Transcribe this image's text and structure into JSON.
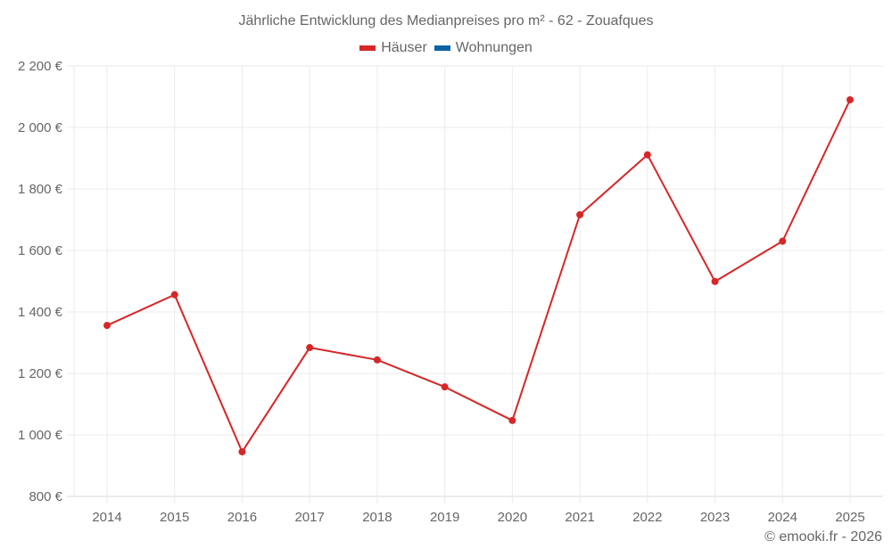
{
  "title": "Jährliche Entwicklung des Medianpreises pro m² - 62 - Zouafques",
  "legend": [
    {
      "label": "Häuser",
      "color": "#d62728"
    },
    {
      "label": "Wohnungen",
      "color": "#0a64a4"
    }
  ],
  "footer": "© emooki.fr - 2026",
  "colors": {
    "grid": "#ebebeb",
    "axis": "#d9d9d9",
    "text": "#666666",
    "series_houses": "#d62728"
  },
  "chart_data": {
    "type": "line",
    "title": "Jährliche Entwicklung des Medianpreises pro m² - 62 - Zouafques",
    "xlabel": "",
    "ylabel": "",
    "categories": [
      "2014",
      "2015",
      "2016",
      "2017",
      "2018",
      "2019",
      "2020",
      "2021",
      "2022",
      "2023",
      "2024",
      "2025"
    ],
    "series": [
      {
        "name": "Häuser",
        "color": "#d62728",
        "values": [
          1356,
          1456,
          945,
          1284,
          1244,
          1156,
          1047,
          1716,
          1911,
          1499,
          1630,
          2090
        ]
      },
      {
        "name": "Wohnungen",
        "color": "#0a64a4",
        "values": []
      }
    ],
    "ylim": [
      800,
      2200
    ],
    "yticks": [
      800,
      1000,
      1200,
      1400,
      1600,
      1800,
      2000,
      2200
    ],
    "ytick_labels": [
      "800 €",
      "1 000 €",
      "1 200 €",
      "1 400 €",
      "1 600 €",
      "1 800 €",
      "2 000 €",
      "2 200 €"
    ],
    "grid": true,
    "legend_position": "top"
  }
}
